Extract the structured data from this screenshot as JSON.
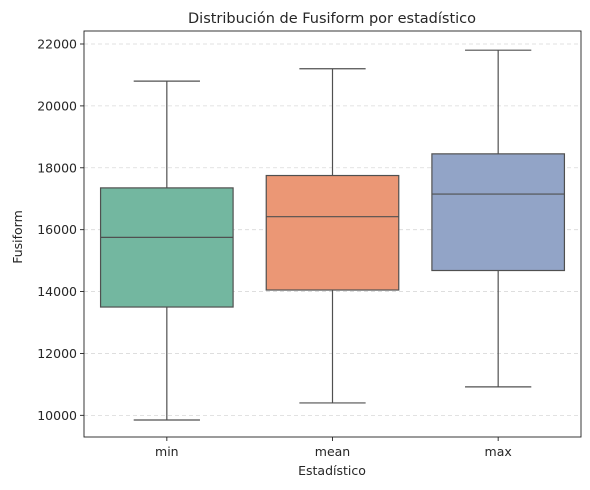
{
  "chart_data": {
    "type": "box",
    "title": "Distribución de Fusiform por estadístico",
    "xlabel": "Estadístico",
    "ylabel": "Fusiform",
    "categories": [
      "min",
      "mean",
      "max"
    ],
    "boxes": [
      {
        "category": "min",
        "whisker_low": 9850,
        "q1": 13500,
        "median": 15750,
        "q3": 17350,
        "whisker_high": 20800,
        "color": "#73b7a0"
      },
      {
        "category": "mean",
        "whisker_low": 10400,
        "q1": 14050,
        "median": 16420,
        "q3": 17750,
        "whisker_high": 21200,
        "color": "#eb9775"
      },
      {
        "category": "max",
        "whisker_low": 10920,
        "q1": 14680,
        "median": 17150,
        "q3": 18450,
        "whisker_high": 21800,
        "color": "#92a4c7"
      }
    ],
    "yticks": [
      10000,
      12000,
      14000,
      16000,
      18000,
      20000,
      22000
    ],
    "ytick_labels": [
      "10000",
      "12000",
      "14000",
      "16000",
      "18000",
      "20000",
      "22000"
    ],
    "ylim": [
      9300,
      22420
    ],
    "grid": {
      "y": true,
      "style": "dashed"
    },
    "line_color": "#505050"
  }
}
